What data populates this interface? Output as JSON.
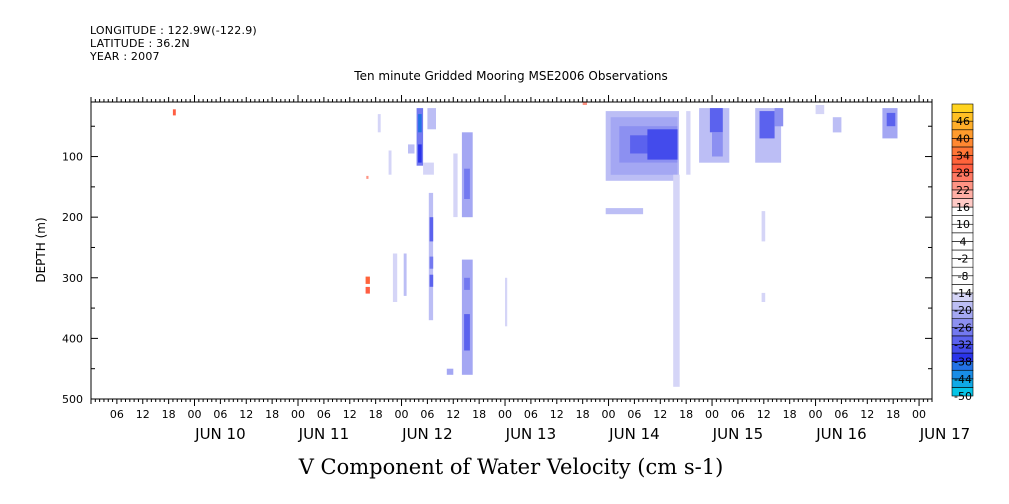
{
  "header": {
    "longitude": "LONGITUDE : 122.9W(-122.9)",
    "latitude": "LATITUDE : 36.2N",
    "year": "YEAR : 2007"
  },
  "chart_data": {
    "type": "heatmap",
    "title": "Ten minute Gridded Mooring MSE2006 Observations",
    "xlabel": "V Component of Water Velocity (cm s-1)",
    "ylabel": "DEPTH (m)",
    "x_start": "2007-06-09 00:00",
    "x_end": "2007-06-17 03:00",
    "x_tick_hours": [
      "06",
      "12",
      "18",
      "00",
      "06",
      "12",
      "18",
      "00",
      "06",
      "12",
      "18",
      "00",
      "06",
      "12",
      "18",
      "00",
      "06",
      "12",
      "18",
      "00",
      "06",
      "12",
      "18",
      "00",
      "06",
      "12",
      "18",
      "00",
      "06",
      "12",
      "18",
      "00"
    ],
    "x_day_labels": [
      "JUN 10",
      "JUN 11",
      "JUN 12",
      "JUN 13",
      "JUN 14",
      "JUN 15",
      "JUN 16",
      "JUN 17"
    ],
    "ylim": [
      500,
      10
    ],
    "y_ticks": [
      100,
      200,
      300,
      400,
      500
    ],
    "colorbar_labels": [
      "46",
      "40",
      "34",
      "28",
      "22",
      "16",
      "10",
      "4",
      "-2",
      "-8",
      "-14",
      "-20",
      "-26",
      "-32",
      "-38",
      "-44",
      "-50"
    ],
    "colorbar_range": [
      -50,
      52
    ],
    "colorbar_step": 3,
    "features": [
      {
        "t": "2007-06-09 19:00",
        "t2": "2007-06-09 19:40",
        "d1": 22,
        "d2": 32,
        "v": 30
      },
      {
        "t": "2007-06-11 15:40",
        "t2": "2007-06-11 16:40",
        "d1": 298,
        "d2": 310,
        "v": 32
      },
      {
        "t": "2007-06-11 15:40",
        "t2": "2007-06-11 16:40",
        "d1": 315,
        "d2": 326,
        "v": 30
      },
      {
        "t": "2007-06-11 15:50",
        "t2": "2007-06-11 16:20",
        "d1": 132,
        "d2": 137,
        "v": 22
      },
      {
        "t": "2007-06-11 18:30",
        "t2": "2007-06-11 19:10",
        "d1": 30,
        "d2": 60,
        "v": -17
      },
      {
        "t": "2007-06-11 21:00",
        "t2": "2007-06-11 21:40",
        "d1": 90,
        "d2": 130,
        "v": -16
      },
      {
        "t": "2007-06-11 22:00",
        "t2": "2007-06-11 23:00",
        "d1": 260,
        "d2": 340,
        "v": -17
      },
      {
        "t": "2007-06-12 00:30",
        "t2": "2007-06-12 01:10",
        "d1": 260,
        "d2": 330,
        "v": -18
      },
      {
        "t": "2007-06-12 03:30",
        "t2": "2007-06-12 05:00",
        "d1": 20,
        "d2": 115,
        "v": -28
      },
      {
        "t": "2007-06-12 03:50",
        "t2": "2007-06-12 04:40",
        "d1": 30,
        "d2": 60,
        "v": -40
      },
      {
        "t": "2007-06-12 03:50",
        "t2": "2007-06-12 04:40",
        "d1": 80,
        "d2": 110,
        "v": -36
      },
      {
        "t": "2007-06-12 01:30",
        "t2": "2007-06-12 03:00",
        "d1": 80,
        "d2": 95,
        "v": -20
      },
      {
        "t": "2007-06-12 05:00",
        "t2": "2007-06-12 07:30",
        "d1": 110,
        "d2": 130,
        "v": -16
      },
      {
        "t": "2007-06-12 06:00",
        "t2": "2007-06-12 08:00",
        "d1": 20,
        "d2": 55,
        "v": -18
      },
      {
        "t": "2007-06-12 06:20",
        "t2": "2007-06-12 07:20",
        "d1": 160,
        "d2": 370,
        "v": -20
      },
      {
        "t": "2007-06-12 06:30",
        "t2": "2007-06-12 07:20",
        "d1": 200,
        "d2": 240,
        "v": -30
      },
      {
        "t": "2007-06-12 06:30",
        "t2": "2007-06-12 07:20",
        "d1": 265,
        "d2": 285,
        "v": -28
      },
      {
        "t": "2007-06-12 06:30",
        "t2": "2007-06-12 07:20",
        "d1": 295,
        "d2": 315,
        "v": -32
      },
      {
        "t": "2007-06-12 10:30",
        "t2": "2007-06-12 12:00",
        "d1": 450,
        "d2": 460,
        "v": -22
      },
      {
        "t": "2007-06-12 12:00",
        "t2": "2007-06-12 13:00",
        "d1": 95,
        "d2": 200,
        "v": -16
      },
      {
        "t": "2007-06-12 14:00",
        "t2": "2007-06-12 16:30",
        "d1": 60,
        "d2": 200,
        "v": -22
      },
      {
        "t": "2007-06-12 14:30",
        "t2": "2007-06-12 15:50",
        "d1": 120,
        "d2": 170,
        "v": -28
      },
      {
        "t": "2007-06-12 14:00",
        "t2": "2007-06-12 16:30",
        "d1": 270,
        "d2": 460,
        "v": -22
      },
      {
        "t": "2007-06-12 14:30",
        "t2": "2007-06-12 15:50",
        "d1": 300,
        "d2": 320,
        "v": -28
      },
      {
        "t": "2007-06-12 14:30",
        "t2": "2007-06-12 15:50",
        "d1": 360,
        "d2": 420,
        "v": -30
      },
      {
        "t": "2007-06-13 00:00",
        "t2": "2007-06-13 00:30",
        "d1": 300,
        "d2": 380,
        "v": -16
      },
      {
        "t": "2007-06-13 18:00",
        "t2": "2007-06-13 19:00",
        "d1": 10,
        "d2": 15,
        "v": 24
      },
      {
        "t": "2007-06-13 23:20",
        "t2": "2007-06-14 16:20",
        "d1": 25,
        "d2": 140,
        "v": -18
      },
      {
        "t": "2007-06-14 00:30",
        "t2": "2007-06-14 16:00",
        "d1": 35,
        "d2": 130,
        "v": -22
      },
      {
        "t": "2007-06-14 02:30",
        "t2": "2007-06-14 16:00",
        "d1": 50,
        "d2": 110,
        "v": -26
      },
      {
        "t": "2007-06-14 05:00",
        "t2": "2007-06-14 16:00",
        "d1": 65,
        "d2": 95,
        "v": -30
      },
      {
        "t": "2007-06-14 09:00",
        "t2": "2007-06-14 16:00",
        "d1": 55,
        "d2": 105,
        "v": -33
      },
      {
        "t": "2007-06-13 23:20",
        "t2": "2007-06-14 16:00",
        "d1": 185,
        "d2": 245,
        "v": -14
      },
      {
        "t": "2007-06-13 23:20",
        "t2": "2007-06-14 08:00",
        "d1": 185,
        "d2": 195,
        "v": -19
      },
      {
        "t": "2007-06-13 23:20",
        "t2": "2007-06-14 16:00",
        "d1": 290,
        "d2": 460,
        "v": -14
      },
      {
        "t": "2007-06-14 15:00",
        "t2": "2007-06-14 16:30",
        "d1": 130,
        "d2": 480,
        "v": -17
      },
      {
        "t": "2007-06-14 18:00",
        "t2": "2007-06-14 19:00",
        "d1": 25,
        "d2": 130,
        "v": -17
      },
      {
        "t": "2007-06-14 21:00",
        "t2": "2007-06-15 04:00",
        "d1": 20,
        "d2": 110,
        "v": -20
      },
      {
        "t": "2007-06-14 23:30",
        "t2": "2007-06-15 02:30",
        "d1": 20,
        "d2": 60,
        "v": -30
      },
      {
        "t": "2007-06-15 00:00",
        "t2": "2007-06-15 02:30",
        "d1": 60,
        "d2": 100,
        "v": -26
      },
      {
        "t": "2007-06-15 10:00",
        "t2": "2007-06-15 16:00",
        "d1": 20,
        "d2": 110,
        "v": -20
      },
      {
        "t": "2007-06-15 11:00",
        "t2": "2007-06-15 14:30",
        "d1": 25,
        "d2": 70,
        "v": -30
      },
      {
        "t": "2007-06-15 14:30",
        "t2": "2007-06-15 16:30",
        "d1": 20,
        "d2": 50,
        "v": -24
      },
      {
        "t": "2007-06-15 11:30",
        "t2": "2007-06-15 12:20",
        "d1": 190,
        "d2": 240,
        "v": -16
      },
      {
        "t": "2007-06-15 11:30",
        "t2": "2007-06-15 12:20",
        "d1": 325,
        "d2": 340,
        "v": -17
      },
      {
        "t": "2007-06-16 00:00",
        "t2": "2007-06-16 02:00",
        "d1": 15,
        "d2": 30,
        "v": -15
      },
      {
        "t": "2007-06-16 04:00",
        "t2": "2007-06-16 06:00",
        "d1": 35,
        "d2": 60,
        "v": -18
      },
      {
        "t": "2007-06-16 15:30",
        "t2": "2007-06-16 19:00",
        "d1": 20,
        "d2": 70,
        "v": -22
      },
      {
        "t": "2007-06-16 16:30",
        "t2": "2007-06-16 18:30",
        "d1": 28,
        "d2": 50,
        "v": -30
      }
    ]
  }
}
